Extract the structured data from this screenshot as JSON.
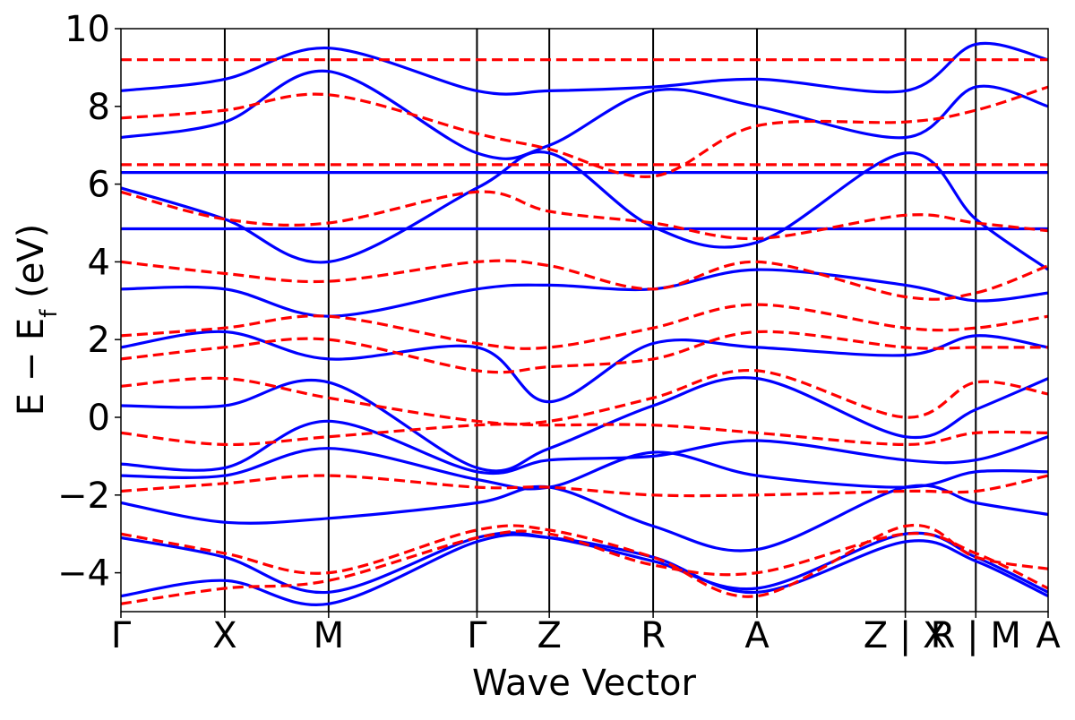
{
  "chart_data": {
    "type": "line",
    "title": "",
    "xlabel": "Wave Vector",
    "ylabel": "E − E",
    "ylabel_sub": "f",
    "ylabel_unit": " (eV)",
    "ylim": [
      -5,
      10
    ],
    "yticks": [
      -4,
      -2,
      0,
      2,
      4,
      6,
      8,
      10
    ],
    "ytick_labels": [
      "−4",
      "−2",
      "0",
      "2",
      "4",
      "6",
      "8",
      "10"
    ],
    "xlim": [
      0,
      1
    ],
    "kpoints": [
      {
        "x": 0.0,
        "label": "Γ"
      },
      {
        "x": 0.112,
        "label": "X"
      },
      {
        "x": 0.224,
        "label": "M"
      },
      {
        "x": 0.384,
        "label": "Γ"
      },
      {
        "x": 0.462,
        "label": "Z"
      },
      {
        "x": 0.574,
        "label": "R"
      },
      {
        "x": 0.686,
        "label": "A"
      },
      {
        "x": 0.846,
        "label": "Z | X"
      },
      {
        "x": 0.922,
        "label": "R | M"
      },
      {
        "x": 1.0,
        "label": "A"
      }
    ],
    "grid": false,
    "legend": "none",
    "series": [
      {
        "color": "#0000ff",
        "style": "solid",
        "bands": [
          {
            "x": [
              0,
              0.112,
              0.224,
              0.384,
              0.462,
              0.574,
              0.686,
              0.846,
              0.922,
              1.0
            ],
            "y": [
              -4.6,
              -4.2,
              -4.8,
              -3.2,
              -3.1,
              -3.6,
              -4.5,
              -3.2,
              -3.7,
              -4.6
            ]
          },
          {
            "x": [
              0,
              0.112,
              0.224,
              0.384,
              0.462,
              0.574,
              0.686,
              0.846,
              0.922,
              1.0
            ],
            "y": [
              -3.1,
              -3.6,
              -4.5,
              -3.1,
              -3.1,
              -3.7,
              -4.4,
              -3.0,
              -3.6,
              -4.5
            ]
          },
          {
            "x": [
              0,
              0.112,
              0.224,
              0.384,
              0.462,
              0.574,
              0.686,
              0.846,
              0.922,
              1.0
            ],
            "y": [
              -2.2,
              -2.7,
              -2.6,
              -2.2,
              -1.8,
              -2.8,
              -3.4,
              -1.8,
              -2.2,
              -2.5
            ]
          },
          {
            "x": [
              0,
              0.112,
              0.224,
              0.384,
              0.462,
              0.574,
              0.686,
              0.846,
              0.922,
              1.0
            ],
            "y": [
              -1.5,
              -1.5,
              -0.8,
              -1.6,
              -1.8,
              -0.9,
              -1.5,
              -1.8,
              -1.4,
              -1.4
            ]
          },
          {
            "x": [
              0,
              0.112,
              0.224,
              0.384,
              0.462,
              0.574,
              0.686,
              0.846,
              0.922,
              1.0
            ],
            "y": [
              -1.2,
              -1.3,
              -0.1,
              -1.4,
              -1.1,
              -1.0,
              -0.6,
              -1.1,
              -1.1,
              -0.5
            ]
          },
          {
            "x": [
              0,
              0.112,
              0.224,
              0.384,
              0.462,
              0.574,
              0.686,
              0.846,
              0.922,
              1.0
            ],
            "y": [
              0.3,
              0.3,
              0.9,
              -1.3,
              -0.8,
              0.3,
              1.0,
              -0.5,
              0.2,
              1.0
            ]
          },
          {
            "x": [
              0,
              0.112,
              0.224,
              0.384,
              0.462,
              0.574,
              0.686,
              0.846,
              0.922,
              1.0
            ],
            "y": [
              1.8,
              2.2,
              1.5,
              1.8,
              0.4,
              1.9,
              1.8,
              1.6,
              2.1,
              1.8
            ]
          },
          {
            "x": [
              0,
              0.112,
              0.224,
              0.384,
              0.462,
              0.574,
              0.686,
              0.846,
              0.922,
              1.0
            ],
            "y": [
              3.3,
              3.3,
              2.6,
              3.3,
              3.4,
              3.3,
              3.8,
              3.4,
              3.0,
              3.2
            ]
          },
          {
            "x": [
              0,
              0.112,
              0.224,
              0.384,
              0.462,
              0.574,
              0.686,
              0.846,
              0.922,
              1.0
            ],
            "y": [
              4.85,
              4.85,
              4.85,
              4.85,
              4.85,
              4.85,
              4.85,
              4.85,
              4.85,
              4.85
            ]
          },
          {
            "x": [
              0,
              0.112,
              0.224,
              0.384,
              0.462,
              0.574,
              0.686,
              0.846,
              0.922,
              1.0
            ],
            "y": [
              5.9,
              5.1,
              4.0,
              5.9,
              6.8,
              4.9,
              4.5,
              6.8,
              5.1,
              3.8
            ]
          },
          {
            "x": [
              0,
              0.112,
              0.224,
              0.384,
              0.462,
              0.574,
              0.686,
              0.846,
              0.922,
              1.0
            ],
            "y": [
              6.3,
              6.3,
              6.3,
              6.3,
              6.3,
              6.3,
              6.3,
              6.3,
              6.3,
              6.3
            ]
          },
          {
            "x": [
              0,
              0.112,
              0.224,
              0.384,
              0.462,
              0.574,
              0.686,
              0.846,
              0.922,
              1.0
            ],
            "y": [
              7.2,
              7.6,
              8.9,
              6.8,
              7.0,
              8.4,
              8.0,
              7.2,
              8.5,
              8.0
            ]
          },
          {
            "x": [
              0,
              0.112,
              0.224,
              0.384,
              0.462,
              0.574,
              0.686,
              0.846,
              0.922,
              1.0
            ],
            "y": [
              8.4,
              8.7,
              9.5,
              8.4,
              8.4,
              8.5,
              8.7,
              8.4,
              9.6,
              9.2
            ]
          }
        ]
      },
      {
        "color": "#ff0000",
        "style": "dashed",
        "bands": [
          {
            "x": [
              0,
              0.112,
              0.224,
              0.384,
              0.462,
              0.574,
              0.686,
              0.846,
              0.922,
              1.0
            ],
            "y": [
              -4.8,
              -4.4,
              -4.2,
              -3.1,
              -3.0,
              -3.8,
              -4.0,
              -3.0,
              -3.5,
              -4.4
            ]
          },
          {
            "x": [
              0,
              0.112,
              0.224,
              0.384,
              0.462,
              0.574,
              0.686,
              0.846,
              0.922,
              1.0
            ],
            "y": [
              -3.0,
              -3.5,
              -4.0,
              -2.9,
              -2.9,
              -3.6,
              -4.6,
              -2.8,
              -3.6,
              -3.9
            ]
          },
          {
            "x": [
              0,
              0.112,
              0.224,
              0.384,
              0.462,
              0.574,
              0.686,
              0.846,
              0.922,
              1.0
            ],
            "y": [
              -1.9,
              -1.7,
              -1.5,
              -1.8,
              -1.8,
              -2.0,
              -2.0,
              -1.9,
              -1.9,
              -1.5
            ]
          },
          {
            "x": [
              0,
              0.112,
              0.224,
              0.384,
              0.462,
              0.574,
              0.686,
              0.846,
              0.922,
              1.0
            ],
            "y": [
              -0.4,
              -0.7,
              -0.5,
              -0.2,
              -0.2,
              -0.2,
              -0.4,
              -0.7,
              -0.4,
              -0.4
            ]
          },
          {
            "x": [
              0,
              0.112,
              0.224,
              0.384,
              0.462,
              0.574,
              0.686,
              0.846,
              0.922,
              1.0
            ],
            "y": [
              0.8,
              1.0,
              0.5,
              -0.1,
              -0.1,
              0.5,
              1.2,
              0.0,
              0.9,
              0.6
            ]
          },
          {
            "x": [
              0,
              0.112,
              0.224,
              0.384,
              0.462,
              0.574,
              0.686,
              0.846,
              0.922,
              1.0
            ],
            "y": [
              1.5,
              1.8,
              2.0,
              1.2,
              1.3,
              1.5,
              2.2,
              1.8,
              1.8,
              1.8
            ]
          },
          {
            "x": [
              0,
              0.112,
              0.224,
              0.384,
              0.462,
              0.574,
              0.686,
              0.846,
              0.922,
              1.0
            ],
            "y": [
              2.1,
              2.3,
              2.6,
              1.9,
              1.8,
              2.3,
              2.9,
              2.3,
              2.3,
              2.6
            ]
          },
          {
            "x": [
              0,
              0.112,
              0.224,
              0.384,
              0.462,
              0.574,
              0.686,
              0.846,
              0.922,
              1.0
            ],
            "y": [
              4.0,
              3.7,
              3.5,
              4.0,
              3.9,
              3.3,
              4.0,
              3.1,
              3.2,
              3.9
            ]
          },
          {
            "x": [
              0,
              0.112,
              0.224,
              0.384,
              0.462,
              0.574,
              0.686,
              0.846,
              0.922,
              1.0
            ],
            "y": [
              5.8,
              5.1,
              5.0,
              5.8,
              5.3,
              5.0,
              4.6,
              5.2,
              5.0,
              4.8
            ]
          },
          {
            "x": [
              0,
              0.112,
              0.224,
              0.384,
              0.462,
              0.574,
              0.686,
              0.846,
              0.922,
              1.0
            ],
            "y": [
              6.5,
              6.5,
              6.5,
              6.5,
              6.5,
              6.5,
              6.5,
              6.5,
              6.5,
              6.5
            ]
          },
          {
            "x": [
              0,
              0.112,
              0.224,
              0.384,
              0.462,
              0.574,
              0.686,
              0.846,
              0.922,
              1.0
            ],
            "y": [
              7.7,
              7.9,
              8.3,
              7.3,
              6.9,
              6.2,
              7.5,
              7.6,
              7.9,
              8.5
            ]
          },
          {
            "x": [
              0,
              0.112,
              0.224,
              0.384,
              0.462,
              0.574,
              0.686,
              0.846,
              0.922,
              1.0
            ],
            "y": [
              9.2,
              9.2,
              9.2,
              9.2,
              9.2,
              9.2,
              9.2,
              9.2,
              9.2,
              9.2
            ]
          }
        ]
      }
    ]
  }
}
